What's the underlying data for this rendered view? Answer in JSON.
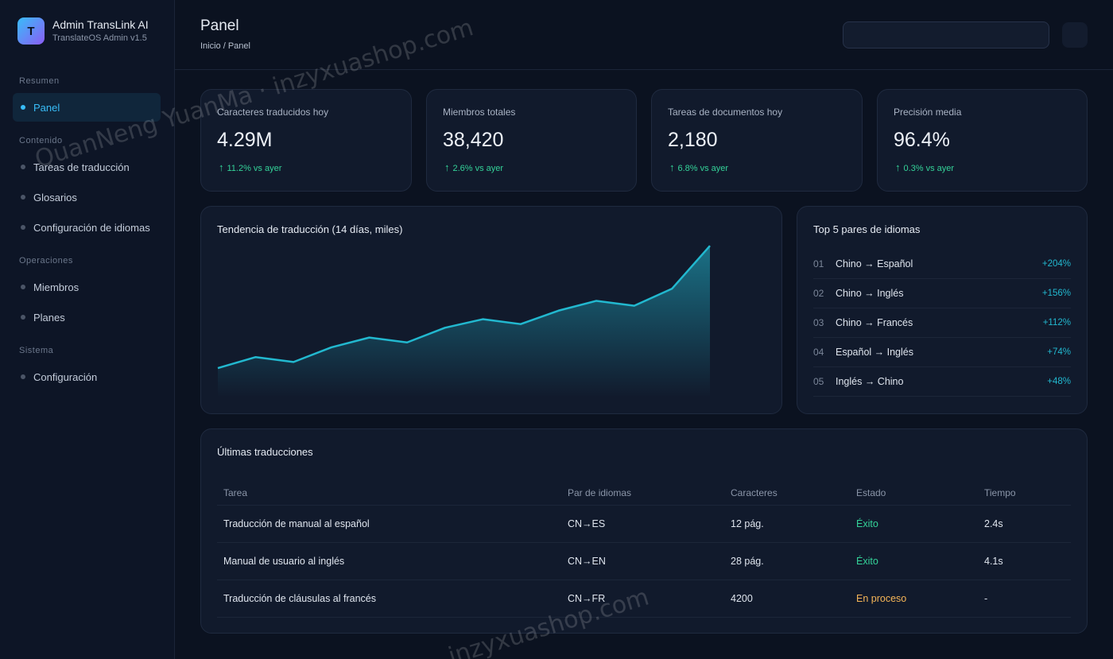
{
  "brand": {
    "logo_letter": "T",
    "name": "Admin TransLink AI",
    "subtitle": "TranslateOS Admin v1.5"
  },
  "sidebar": {
    "sections": [
      {
        "label": "Resumen",
        "items": [
          {
            "label": "Panel",
            "active": true
          }
        ]
      },
      {
        "label": "Contenido",
        "items": [
          {
            "label": "Tareas de traducción"
          },
          {
            "label": "Glosarios"
          },
          {
            "label": "Configuración de idiomas"
          }
        ]
      },
      {
        "label": "Operaciones",
        "items": [
          {
            "label": "Miembros"
          },
          {
            "label": "Planes"
          }
        ]
      },
      {
        "label": "Sistema",
        "items": [
          {
            "label": "Configuración"
          }
        ]
      }
    ]
  },
  "header": {
    "title": "Panel",
    "breadcrumb": "Inicio / Panel",
    "search": {
      "value": "",
      "placeholder": ""
    }
  },
  "stats": [
    {
      "label": "Caracteres traducidos hoy",
      "value": "4.29M",
      "delta": "11.2% vs ayer"
    },
    {
      "label": "Miembros totales",
      "value": "38,420",
      "delta": "2.6% vs ayer"
    },
    {
      "label": "Tareas de documentos hoy",
      "value": "2,180",
      "delta": "6.8% vs ayer"
    },
    {
      "label": "Precisión media",
      "value": "96.4%",
      "delta": "0.3% vs ayer"
    }
  ],
  "chart_data": {
    "type": "area",
    "title": "Tendencia de traducción (14 días, miles)",
    "xlabel": "",
    "ylabel": "",
    "x": [
      1,
      2,
      3,
      4,
      5,
      6,
      7,
      8,
      9,
      10,
      11,
      12,
      13,
      14
    ],
    "values": [
      120,
      165,
      145,
      205,
      245,
      225,
      285,
      320,
      300,
      355,
      395,
      375,
      445,
      620
    ],
    "ylim": [
      0,
      650
    ],
    "grid": false,
    "line_color": "#22b8cf"
  },
  "top_pairs": {
    "title": "Top 5 pares de idiomas",
    "items": [
      {
        "idx": "01",
        "name": "Chino → Español",
        "pct": "+204%"
      },
      {
        "idx": "02",
        "name": "Chino → Inglés",
        "pct": "+156%"
      },
      {
        "idx": "03",
        "name": "Chino → Francés",
        "pct": "+112%"
      },
      {
        "idx": "04",
        "name": "Español → Inglés",
        "pct": "+74%"
      },
      {
        "idx": "05",
        "name": "Inglés → Chino",
        "pct": "+48%"
      }
    ]
  },
  "recent": {
    "title": "Últimas traducciones",
    "columns": [
      "Tarea",
      "Par de idiomas",
      "Caracteres",
      "Estado",
      "Tiempo"
    ],
    "rows": [
      {
        "task": "Traducción de manual al español",
        "pair": "CN→ES",
        "chars": "12 pág.",
        "status": "Éxito",
        "time": "2.4s"
      },
      {
        "task": "Manual de usuario al inglés",
        "pair": "CN→EN",
        "chars": "28 pág.",
        "status": "Éxito",
        "time": "4.1s"
      },
      {
        "task": "Traducción de cláusulas al francés",
        "pair": "CN→FR",
        "chars": "4200",
        "status": "En proceso",
        "time": "-"
      }
    ]
  },
  "watermarks": [
    "QuanNeng YuanMa · inzyxuashop.com",
    "inzyxuashop.com"
  ],
  "colors": {
    "accent": "#38bdf8",
    "success": "#34d399",
    "pending": "#f5b557",
    "chart_line": "#22b8cf"
  }
}
